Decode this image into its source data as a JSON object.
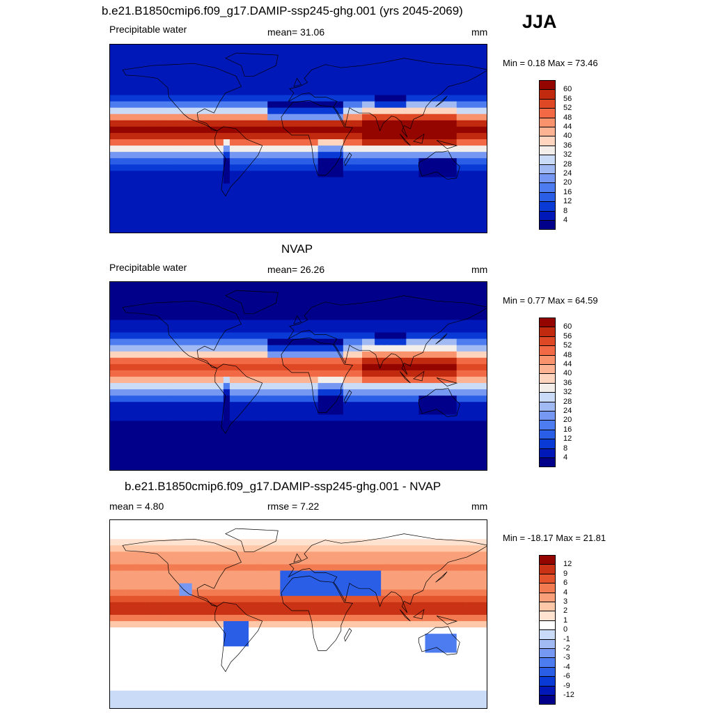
{
  "header": {
    "title": "b.e21.B1850cmip6.f09_g17.DAMIP-ssp245-ghg.001 (yrs 2045-2069)",
    "season": "JJA"
  },
  "colors": {
    "pw_scale": [
      "#00008a",
      "#0018b8",
      "#0a3ad6",
      "#2a5ee6",
      "#4c7cf0",
      "#7698f2",
      "#a2baf4",
      "#cadbf7",
      "#f3eeea",
      "#ffd5bf",
      "#fcb394",
      "#f9936e",
      "#f26a45",
      "#df4824",
      "#c22a10",
      "#950500"
    ],
    "diff_scale": [
      "#00008a",
      "#0018b8",
      "#0a3ad6",
      "#2a5ee6",
      "#4c7cf0",
      "#7698f2",
      "#a2baf4",
      "#cadbf7",
      "#ffffff",
      "#ffe3d0",
      "#ffc8a8",
      "#f9a07a",
      "#f27b52",
      "#e3542d",
      "#c93214",
      "#950500"
    ],
    "coast": "#000000"
  },
  "chart_data": [
    {
      "type": "heatmap",
      "title": "",
      "left_label": "Precipitable water",
      "center_label": "mean=  31.06",
      "right_label": "mm",
      "min_max": "Min =   0.18 Max =  73.46",
      "colorbar_ticks": [
        "60",
        "56",
        "52",
        "48",
        "44",
        "40",
        "36",
        "32",
        "28",
        "24",
        "20",
        "16",
        "12",
        "8",
        "4"
      ],
      "stats": {
        "mean": 31.06,
        "min": 0.18,
        "max": 73.46,
        "units": "mm"
      }
    },
    {
      "type": "heatmap",
      "title": "NVAP",
      "left_label": "Precipitable water",
      "center_label": "mean=  26.26",
      "right_label": "mm",
      "min_max": "Min =   0.77 Max =  64.59",
      "colorbar_ticks": [
        "60",
        "56",
        "52",
        "48",
        "44",
        "40",
        "36",
        "32",
        "28",
        "24",
        "20",
        "16",
        "12",
        "8",
        "4"
      ],
      "stats": {
        "mean": 26.26,
        "min": 0.77,
        "max": 64.59,
        "units": "mm"
      }
    },
    {
      "type": "heatmap",
      "title": "b.e21.B1850cmip6.f09_g17.DAMIP-ssp245-ghg.001 - NVAP",
      "left_label": "mean =   4.80",
      "center_label": "rmse =   7.22",
      "right_label": "mm",
      "min_max": "Min = -18.17 Max =  21.81",
      "colorbar_ticks": [
        "12",
        "9",
        "6",
        "4",
        "3",
        "2",
        "1",
        "0",
        "-1",
        "-2",
        "-3",
        "-4",
        "-6",
        "-9",
        "-12"
      ],
      "stats": {
        "mean": 4.8,
        "rmse": 7.22,
        "min": -18.17,
        "max": 21.81,
        "units": "mm"
      }
    }
  ]
}
